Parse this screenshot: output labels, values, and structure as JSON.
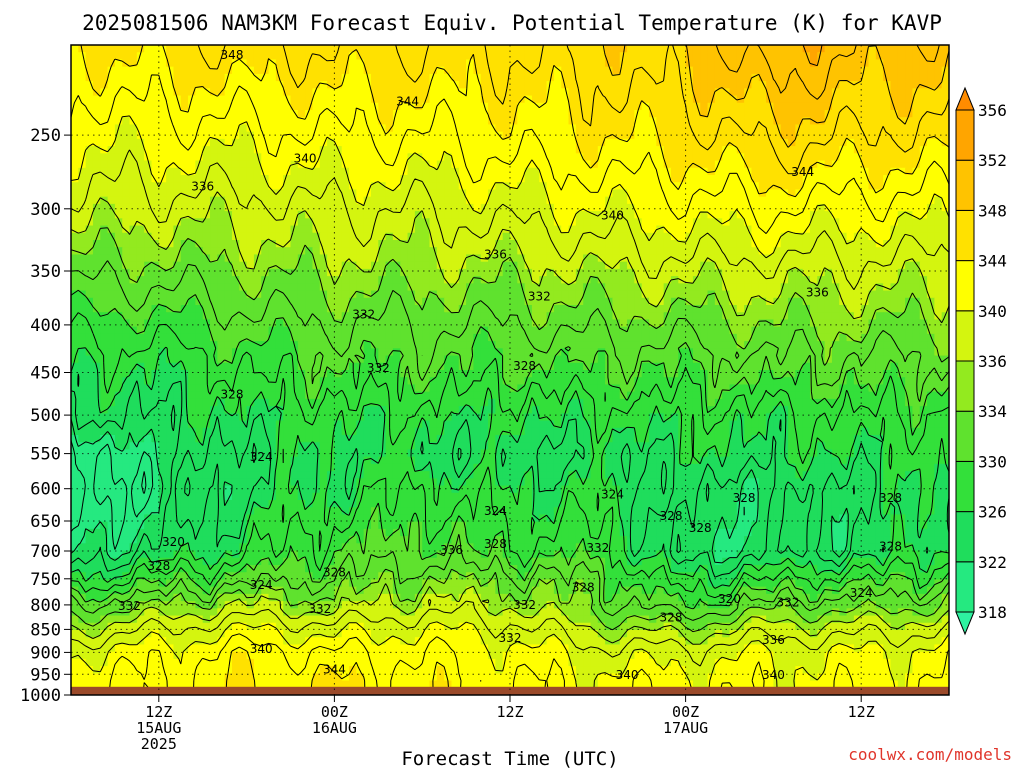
{
  "chart_data": {
    "type": "contour",
    "title": "2025081506 NAM3KM Forecast Equiv. Potential Temperature (K) for KAVP",
    "xlabel": "Forecast Time (UTC)",
    "ylabel": "",
    "credit": "coolwx.com/models",
    "y_axis_scale": "log-pressure, inverted",
    "ylim": [
      1000,
      200
    ],
    "y_ticks": [
      "250",
      "300",
      "350",
      "400",
      "450",
      "500",
      "550",
      "600",
      "650",
      "700",
      "750",
      "800",
      "850",
      "900",
      "950",
      "1000"
    ],
    "x_ticks": [
      {
        "hours": 6,
        "lines": [
          "12Z",
          "15AUG",
          "2025"
        ]
      },
      {
        "hours": 18,
        "lines": [
          "00Z",
          "16AUG"
        ]
      },
      {
        "hours": 30,
        "lines": [
          "12Z",
          ""
        ]
      },
      {
        "hours": 42,
        "lines": [
          "00Z",
          "17AUG"
        ]
      },
      {
        "hours": 54,
        "lines": [
          "12Z",
          ""
        ]
      }
    ],
    "xlim_hours": [
      0,
      60
    ],
    "grid": "dotted",
    "ground_level_hpa": 980,
    "colorbar": {
      "levels": [
        318,
        322,
        326,
        330,
        334,
        336,
        340,
        344,
        348,
        352,
        356
      ],
      "colors": [
        "#2ef2a0",
        "#25e980",
        "#1fdd5c",
        "#33e03a",
        "#5fe22e",
        "#93ea1f",
        "#d4f50f",
        "#ffff00",
        "#ffe100",
        "#ffc300",
        "#ffa500",
        "#ff8c00"
      ]
    },
    "profiles": [
      {
        "hours": 0,
        "theta_e": [
          344,
          340,
          337,
          333,
          329,
          326,
          324,
          318,
          318,
          322,
          326,
          332,
          336,
          340,
          342
        ]
      },
      {
        "hours": 6,
        "theta_e": [
          345,
          341,
          337,
          333,
          329,
          326,
          324,
          323,
          321,
          324,
          329,
          334,
          338,
          341,
          342
        ]
      },
      {
        "hours": 12,
        "theta_e": [
          346,
          341,
          337,
          334,
          331,
          328,
          326,
          324,
          324,
          327,
          331,
          336,
          340,
          343,
          344
        ]
      },
      {
        "hours": 18,
        "theta_e": [
          346,
          342,
          338,
          335,
          332,
          330,
          327,
          326,
          326,
          330,
          332,
          335,
          339,
          342,
          344
        ]
      },
      {
        "hours": 24,
        "theta_e": [
          346,
          342,
          338,
          335,
          332,
          330,
          327,
          325,
          328,
          331,
          334,
          337,
          340,
          342,
          343
        ]
      },
      {
        "hours": 30,
        "theta_e": [
          346,
          343,
          339,
          335,
          332,
          329,
          326,
          324,
          326,
          329,
          333,
          336,
          339,
          341,
          342
        ]
      },
      {
        "hours": 36,
        "theta_e": [
          347,
          344,
          340,
          336,
          333,
          330,
          327,
          324,
          326,
          329,
          332,
          333,
          336,
          339,
          341
        ]
      },
      {
        "hours": 42,
        "theta_e": [
          348,
          345,
          341,
          337,
          333,
          330,
          327,
          325,
          323,
          322,
          326,
          330,
          335,
          339,
          341
        ]
      },
      {
        "hours": 48,
        "theta_e": [
          352,
          347,
          342,
          337,
          334,
          331,
          327,
          326,
          323,
          323,
          328,
          333,
          337,
          340,
          341
        ]
      },
      {
        "hours": 54,
        "theta_e": [
          350,
          346,
          341,
          337,
          334,
          331,
          328,
          326,
          324,
          324,
          329,
          333,
          337,
          340,
          341
        ]
      },
      {
        "hours": 60,
        "theta_e": [
          349,
          345,
          341,
          337,
          334,
          331,
          328,
          327,
          326,
          327,
          330,
          334,
          338,
          341,
          342
        ]
      }
    ],
    "profile_pressure_levels": [
      200,
      250,
      300,
      350,
      400,
      450,
      500,
      550,
      600,
      700,
      750,
      800,
      850,
      900,
      970
    ],
    "contour_labels": [
      {
        "text": "348",
        "hours": 11,
        "hpa": 205
      },
      {
        "text": "344",
        "hours": 23,
        "hpa": 230
      },
      {
        "text": "340",
        "hours": 16,
        "hpa": 265
      },
      {
        "text": "336",
        "hours": 9,
        "hpa": 284
      },
      {
        "text": "344",
        "hours": 50,
        "hpa": 274
      },
      {
        "text": "340",
        "hours": 37,
        "hpa": 305
      },
      {
        "text": "336",
        "hours": 29,
        "hpa": 336
      },
      {
        "text": "336",
        "hours": 51,
        "hpa": 369
      },
      {
        "text": "332",
        "hours": 20,
        "hpa": 390
      },
      {
        "text": "332",
        "hours": 32,
        "hpa": 373
      },
      {
        "text": "332",
        "hours": 21,
        "hpa": 445
      },
      {
        "text": "328",
        "hours": 31,
        "hpa": 443
      },
      {
        "text": "328",
        "hours": 11,
        "hpa": 475
      },
      {
        "text": "324",
        "hours": 13,
        "hpa": 555
      },
      {
        "text": "324",
        "hours": 29,
        "hpa": 634
      },
      {
        "text": "324",
        "hours": 37,
        "hpa": 609
      },
      {
        "text": "328",
        "hours": 41,
        "hpa": 642
      },
      {
        "text": "328",
        "hours": 43,
        "hpa": 661
      },
      {
        "text": "328",
        "hours": 46,
        "hpa": 614
      },
      {
        "text": "328",
        "hours": 56,
        "hpa": 614
      },
      {
        "text": "328",
        "hours": 56,
        "hpa": 692
      },
      {
        "text": "320",
        "hours": 7,
        "hpa": 685
      },
      {
        "text": "328",
        "hours": 6,
        "hpa": 727
      },
      {
        "text": "336",
        "hours": 26,
        "hpa": 698
      },
      {
        "text": "328",
        "hours": 29,
        "hpa": 688
      },
      {
        "text": "332",
        "hours": 36,
        "hpa": 695
      },
      {
        "text": "328",
        "hours": 18,
        "hpa": 738
      },
      {
        "text": "324",
        "hours": 13,
        "hpa": 762
      },
      {
        "text": "328",
        "hours": 35,
        "hpa": 766
      },
      {
        "text": "320",
        "hours": 45,
        "hpa": 788
      },
      {
        "text": "324",
        "hours": 54,
        "hpa": 777
      },
      {
        "text": "332",
        "hours": 4,
        "hpa": 802
      },
      {
        "text": "332",
        "hours": 17,
        "hpa": 808
      },
      {
        "text": "332",
        "hours": 31,
        "hpa": 800
      },
      {
        "text": "332",
        "hours": 49,
        "hpa": 795
      },
      {
        "text": "328",
        "hours": 41,
        "hpa": 825
      },
      {
        "text": "332",
        "hours": 30,
        "hpa": 868
      },
      {
        "text": "336",
        "hours": 48,
        "hpa": 873
      },
      {
        "text": "340",
        "hours": 13,
        "hpa": 892
      },
      {
        "text": "344",
        "hours": 18,
        "hpa": 939
      },
      {
        "text": "340",
        "hours": 38,
        "hpa": 952
      },
      {
        "text": "340",
        "hours": 48,
        "hpa": 952
      }
    ]
  }
}
